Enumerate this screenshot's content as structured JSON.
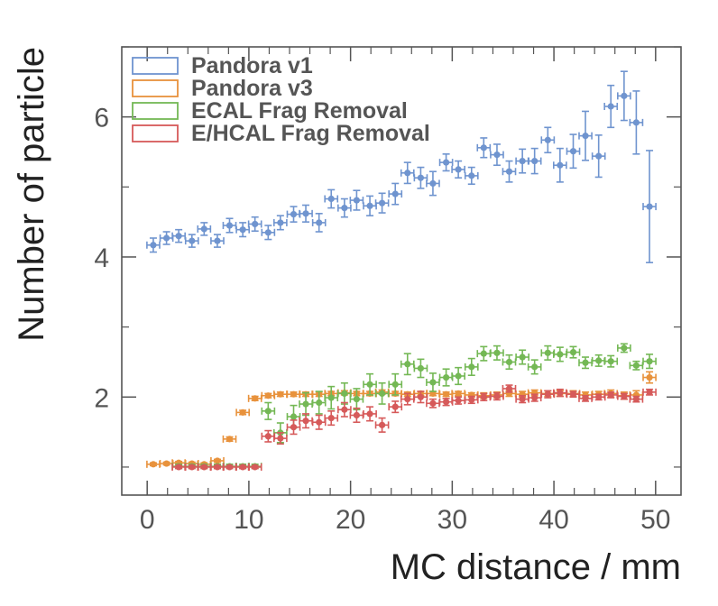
{
  "chart_data": {
    "type": "scatter",
    "title": "",
    "xlabel": "MC distance / mm",
    "ylabel": "Number of particle",
    "xlim": [
      -2.5,
      52.5
    ],
    "ylim": [
      0.6,
      7.0
    ],
    "xticks": [
      0,
      10,
      20,
      30,
      40,
      50
    ],
    "xtick_labels": [
      "0",
      "10",
      "20",
      "30",
      "40",
      "50"
    ],
    "yticks": [
      2,
      4,
      6
    ],
    "ytick_labels": [
      "2",
      "4",
      "6"
    ],
    "bin_half_width": 0.625,
    "legend_position": "top-left",
    "grid": false,
    "series": [
      {
        "name": "Pandora v1",
        "color": "#6f94cf",
        "x": [
          0.6,
          1.9,
          3.1,
          4.4,
          5.6,
          6.9,
          8.1,
          9.4,
          10.6,
          11.9,
          13.1,
          14.4,
          15.6,
          16.9,
          18.1,
          19.4,
          20.6,
          21.9,
          23.1,
          24.4,
          25.6,
          26.9,
          28.1,
          29.4,
          30.6,
          31.9,
          33.1,
          34.4,
          35.6,
          36.9,
          38.1,
          39.4,
          40.6,
          41.9,
          43.1,
          44.4,
          45.6,
          46.9,
          48.1,
          49.4
        ],
        "y": [
          4.17,
          4.27,
          4.3,
          4.23,
          4.4,
          4.23,
          4.45,
          4.39,
          4.47,
          4.35,
          4.49,
          4.61,
          4.62,
          4.49,
          4.83,
          4.7,
          4.81,
          4.73,
          4.77,
          4.9,
          5.2,
          5.13,
          5.05,
          5.35,
          5.25,
          5.16,
          5.56,
          5.46,
          5.22,
          5.37,
          5.37,
          5.67,
          5.31,
          5.51,
          5.73,
          5.44,
          6.15,
          6.3,
          5.92,
          4.72
        ],
        "err": [
          0.1,
          0.09,
          0.09,
          0.09,
          0.09,
          0.09,
          0.1,
          0.1,
          0.1,
          0.1,
          0.1,
          0.11,
          0.12,
          0.13,
          0.13,
          0.13,
          0.14,
          0.14,
          0.14,
          0.15,
          0.15,
          0.15,
          0.17,
          0.12,
          0.12,
          0.12,
          0.14,
          0.15,
          0.15,
          0.17,
          0.18,
          0.18,
          0.24,
          0.24,
          0.35,
          0.3,
          0.3,
          0.35,
          0.45,
          0.8
        ]
      },
      {
        "name": "Pandora v3",
        "color": "#e8923c",
        "x": [
          0.6,
          1.9,
          3.1,
          4.4,
          5.6,
          6.9,
          8.1,
          9.4,
          10.6,
          11.9,
          13.1,
          14.4,
          15.6,
          16.9,
          18.1,
          19.4,
          20.6,
          21.9,
          23.1,
          24.4,
          25.6,
          26.9,
          28.1,
          29.4,
          30.6,
          31.9,
          33.1,
          34.4,
          35.6,
          36.9,
          38.1,
          39.4,
          40.6,
          41.9,
          43.1,
          44.4,
          45.6,
          46.9,
          48.1,
          49.4
        ],
        "y": [
          1.04,
          1.05,
          1.06,
          1.05,
          1.04,
          1.09,
          1.4,
          1.78,
          1.98,
          2.02,
          2.04,
          2.04,
          2.04,
          2.04,
          2.05,
          2.06,
          2.05,
          2.05,
          2.07,
          2.05,
          2.04,
          2.05,
          2.05,
          2.04,
          2.05,
          2.03,
          2.02,
          2.03,
          2.05,
          2.04,
          2.06,
          2.05,
          2.05,
          2.05,
          2.03,
          2.04,
          2.05,
          2.02,
          2.03,
          2.28
        ],
        "err": [
          0.02,
          0.02,
          0.02,
          0.02,
          0.02,
          0.02,
          0.03,
          0.03,
          0.03,
          0.03,
          0.03,
          0.03,
          0.03,
          0.03,
          0.03,
          0.03,
          0.03,
          0.03,
          0.03,
          0.03,
          0.03,
          0.03,
          0.03,
          0.03,
          0.03,
          0.03,
          0.04,
          0.04,
          0.04,
          0.04,
          0.04,
          0.04,
          0.04,
          0.04,
          0.04,
          0.04,
          0.05,
          0.05,
          0.06,
          0.08
        ]
      },
      {
        "name": "ECAL Frag Removal",
        "color": "#74b855",
        "x": [
          3.1,
          4.4,
          5.6,
          6.9,
          8.1,
          9.4,
          10.6,
          11.9,
          13.1,
          14.4,
          15.6,
          16.9,
          18.1,
          19.4,
          20.6,
          21.9,
          23.1,
          24.4,
          25.6,
          26.9,
          28.1,
          29.4,
          30.6,
          31.9,
          33.1,
          34.4,
          35.6,
          36.9,
          38.1,
          39.4,
          40.6,
          41.9,
          43.1,
          44.4,
          45.6,
          46.9,
          48.1,
          49.4
        ],
        "y": [
          1.01,
          1.01,
          1.01,
          1.01,
          1.01,
          1.01,
          1.01,
          1.8,
          1.49,
          1.72,
          1.9,
          1.92,
          1.99,
          2.05,
          1.97,
          2.18,
          2.05,
          2.18,
          2.47,
          2.41,
          2.21,
          2.28,
          2.3,
          2.43,
          2.62,
          2.63,
          2.5,
          2.57,
          2.43,
          2.63,
          2.61,
          2.64,
          2.49,
          2.52,
          2.51,
          2.7,
          2.45,
          2.51
        ],
        "err": [
          0.03,
          0.03,
          0.03,
          0.03,
          0.03,
          0.03,
          0.03,
          0.12,
          0.14,
          0.16,
          0.16,
          0.16,
          0.16,
          0.15,
          0.15,
          0.15,
          0.15,
          0.15,
          0.15,
          0.13,
          0.13,
          0.12,
          0.12,
          0.12,
          0.1,
          0.1,
          0.1,
          0.1,
          0.1,
          0.1,
          0.1,
          0.08,
          0.08,
          0.08,
          0.08,
          0.06,
          0.06,
          0.1
        ]
      },
      {
        "name": "E/HCAL Frag Removal",
        "color": "#d65a5a",
        "x": [
          3.1,
          4.4,
          5.6,
          6.9,
          8.1,
          9.4,
          10.6,
          11.9,
          13.1,
          14.4,
          15.6,
          16.9,
          18.1,
          19.4,
          20.6,
          21.9,
          23.1,
          24.4,
          25.6,
          26.9,
          28.1,
          29.4,
          30.6,
          31.9,
          33.1,
          34.4,
          35.6,
          36.9,
          38.1,
          39.4,
          40.6,
          41.9,
          43.1,
          44.4,
          45.6,
          46.9,
          48.1,
          49.4
        ],
        "y": [
          1.0,
          1.0,
          1.0,
          1.0,
          1.0,
          1.0,
          1.0,
          1.44,
          1.41,
          1.57,
          1.66,
          1.64,
          1.7,
          1.82,
          1.74,
          1.76,
          1.6,
          1.86,
          1.97,
          2.0,
          1.91,
          1.93,
          1.95,
          1.96,
          2.0,
          2.01,
          2.12,
          1.97,
          1.99,
          2.04,
          2.06,
          2.04,
          1.98,
          2.0,
          2.03,
          2.01,
          1.97,
          2.07
        ],
        "err": [
          0.02,
          0.02,
          0.02,
          0.02,
          0.02,
          0.02,
          0.02,
          0.08,
          0.08,
          0.1,
          0.1,
          0.1,
          0.1,
          0.1,
          0.1,
          0.1,
          0.1,
          0.08,
          0.08,
          0.08,
          0.06,
          0.05,
          0.05,
          0.05,
          0.05,
          0.05,
          0.05,
          0.05,
          0.05,
          0.05,
          0.05,
          0.04,
          0.04,
          0.04,
          0.04,
          0.04,
          0.04,
          0.04
        ]
      }
    ]
  }
}
